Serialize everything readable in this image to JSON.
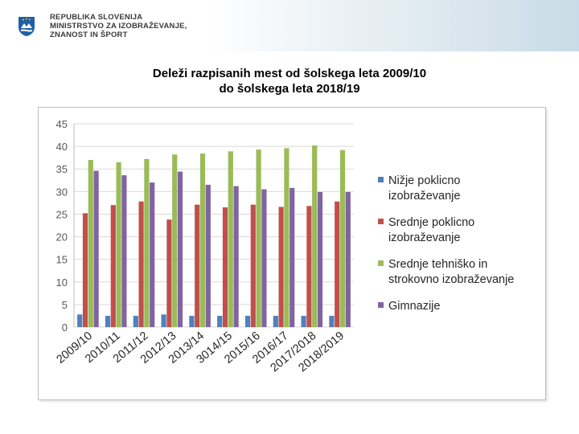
{
  "header": {
    "ministry_lines": [
      "REPUBLIKA SLOVENIJA",
      "MINISTRSTVO ZA IZOBRAŽEVANJE,",
      "ZNANOST IN ŠPORT"
    ]
  },
  "slide": {
    "title_line1": "Deleži razpisanih mest od šolskega leta 2009/10",
    "title_line2": "do šolskega leta 2018/19"
  },
  "colors": {
    "series": [
      "#4f81bd",
      "#c0504d",
      "#9bbb59",
      "#8064a2"
    ],
    "grid": "#d9d9d9",
    "axis_text": "#595959"
  },
  "chart_data": {
    "type": "bar",
    "title": "",
    "xlabel": "",
    "ylabel": "",
    "ylim": [
      0,
      45
    ],
    "yticks": [
      0,
      5,
      10,
      15,
      20,
      25,
      30,
      35,
      40,
      45
    ],
    "grid": true,
    "legend_position": "right",
    "categories": [
      "2009/10",
      "2010/11",
      "2011/12",
      "2012/13",
      "2013/14",
      "3014/15",
      "2015/16",
      "2016/17",
      "2017/2018",
      "2018/2019"
    ],
    "series": [
      {
        "name": "Nižje poklicno izobraževanje",
        "legend_lines": [
          "Nižje poklicno",
          "izobraževanje"
        ],
        "values": [
          2.8,
          2.5,
          2.5,
          2.8,
          2.5,
          2.5,
          2.5,
          2.5,
          2.5,
          2.5
        ]
      },
      {
        "name": "Srednje poklicno izobraževanje",
        "legend_lines": [
          "Srednje poklicno",
          "izobraževanje"
        ],
        "values": [
          25.2,
          27.0,
          27.8,
          23.8,
          27.1,
          26.5,
          27.1,
          26.6,
          26.8,
          27.8
        ]
      },
      {
        "name": "Srednje tehniško in strokovno izobraževanje",
        "legend_lines": [
          "Srednje tehniško in",
          "strokovno izobraževanje"
        ],
        "values": [
          37.0,
          36.5,
          37.2,
          38.2,
          38.4,
          38.9,
          39.3,
          39.6,
          40.2,
          39.2
        ]
      },
      {
        "name": "Gimnazije",
        "legend_lines": [
          "Gimnazije"
        ],
        "values": [
          34.6,
          33.6,
          32.0,
          34.4,
          31.5,
          31.2,
          30.5,
          30.8,
          29.9,
          29.9
        ]
      }
    ]
  }
}
